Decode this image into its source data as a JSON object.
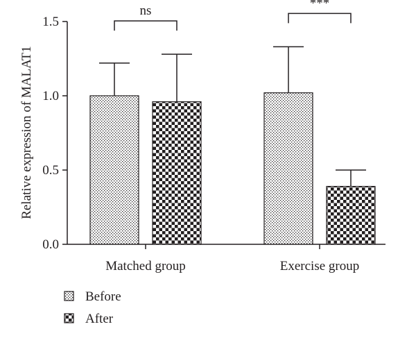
{
  "chart_data": {
    "type": "bar",
    "ylabel": "Relative expression of MALAT1",
    "ylim": [
      0,
      1.5
    ],
    "yticks": [
      "0.0",
      "0.5",
      "1.0",
      "1.5"
    ],
    "categories": [
      "Matched group",
      "Exercise group"
    ],
    "series": [
      {
        "name": "Before",
        "values": [
          1.0,
          1.02
        ],
        "errors": [
          0.22,
          0.31
        ],
        "pattern": "dots"
      },
      {
        "name": "After",
        "values": [
          0.96,
          0.39
        ],
        "errors": [
          0.32,
          0.11
        ],
        "pattern": "checker"
      }
    ],
    "significance": [
      {
        "group": "Matched group",
        "label": "ns"
      },
      {
        "group": "Exercise group",
        "label": "***"
      }
    ],
    "legend_position": "bottom-left",
    "grid": false
  }
}
